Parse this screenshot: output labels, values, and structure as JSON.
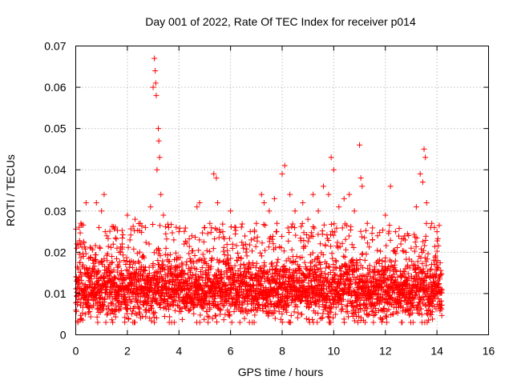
{
  "chart_data": {
    "type": "scatter",
    "title": "Day 001 of 2022, Rate Of TEC Index for receiver p014",
    "xlabel": "GPS time / hours",
    "ylabel": "ROTI / TECUs",
    "xlim": [
      0,
      16
    ],
    "ylim": [
      0,
      0.07
    ],
    "x_ticks": [
      0,
      2,
      4,
      6,
      8,
      10,
      12,
      14,
      16
    ],
    "y_ticks": [
      0,
      0.01,
      0.02,
      0.03,
      0.04,
      0.05,
      0.06,
      0.07
    ],
    "x_tick_labels": [
      "0",
      "2",
      "4",
      "6",
      "8",
      "10",
      "12",
      "14",
      "16"
    ],
    "y_tick_labels": [
      "0",
      "0.01",
      "0.02",
      "0.03",
      "0.04",
      "0.05",
      "0.06",
      "0.07"
    ],
    "grid": true,
    "marker": "+",
    "series": [
      {
        "name": "ROTI",
        "color": "#ff0000",
        "data_range_hours": [
          0,
          14.2
        ],
        "typical_value": 0.011,
        "points": [
          [
            0.05,
            0.022
          ],
          [
            0.1,
            0.016
          ],
          [
            0.2,
            0.027
          ],
          [
            0.3,
            0.019
          ],
          [
            0.4,
            0.032
          ],
          [
            0.5,
            0.014
          ],
          [
            0.6,
            0.021
          ],
          [
            0.7,
            0.018
          ],
          [
            0.8,
            0.032
          ],
          [
            0.9,
            0.026
          ],
          [
            1.0,
            0.03
          ],
          [
            1.1,
            0.034
          ],
          [
            1.2,
            0.024
          ],
          [
            1.4,
            0.019
          ],
          [
            1.6,
            0.021
          ],
          [
            1.8,
            0.022
          ],
          [
            2.0,
            0.029
          ],
          [
            2.1,
            0.023
          ],
          [
            2.3,
            0.028
          ],
          [
            2.5,
            0.027
          ],
          [
            2.7,
            0.026
          ],
          [
            2.9,
            0.031
          ],
          [
            3.0,
            0.06
          ],
          [
            3.05,
            0.067
          ],
          [
            3.08,
            0.064
          ],
          [
            3.1,
            0.061
          ],
          [
            3.12,
            0.058
          ],
          [
            3.15,
            0.04
          ],
          [
            3.2,
            0.05
          ],
          [
            3.22,
            0.047
          ],
          [
            3.25,
            0.043
          ],
          [
            3.3,
            0.034
          ],
          [
            3.4,
            0.029
          ],
          [
            3.6,
            0.026
          ],
          [
            3.8,
            0.023
          ],
          [
            4.0,
            0.025
          ],
          [
            4.2,
            0.022
          ],
          [
            4.5,
            0.024
          ],
          [
            4.7,
            0.031
          ],
          [
            4.8,
            0.032
          ],
          [
            5.0,
            0.026
          ],
          [
            5.2,
            0.027
          ],
          [
            5.35,
            0.039
          ],
          [
            5.45,
            0.038
          ],
          [
            5.5,
            0.032
          ],
          [
            5.7,
            0.025
          ],
          [
            6.0,
            0.03
          ],
          [
            6.2,
            0.026
          ],
          [
            6.5,
            0.021
          ],
          [
            6.8,
            0.023
          ],
          [
            7.0,
            0.027
          ],
          [
            7.2,
            0.034
          ],
          [
            7.3,
            0.032
          ],
          [
            7.5,
            0.03
          ],
          [
            7.7,
            0.033
          ],
          [
            7.8,
            0.027
          ],
          [
            8.0,
            0.039
          ],
          [
            8.1,
            0.041
          ],
          [
            8.3,
            0.034
          ],
          [
            8.5,
            0.03
          ],
          [
            8.8,
            0.032
          ],
          [
            9.0,
            0.028
          ],
          [
            9.2,
            0.034
          ],
          [
            9.4,
            0.03
          ],
          [
            9.6,
            0.036
          ],
          [
            9.8,
            0.034
          ],
          [
            9.9,
            0.043
          ],
          [
            10.0,
            0.04
          ],
          [
            10.2,
            0.031
          ],
          [
            10.4,
            0.033
          ],
          [
            10.6,
            0.034
          ],
          [
            10.8,
            0.03
          ],
          [
            11.0,
            0.046
          ],
          [
            11.05,
            0.038
          ],
          [
            11.1,
            0.036
          ],
          [
            11.3,
            0.027
          ],
          [
            11.5,
            0.023
          ],
          [
            11.7,
            0.024
          ],
          [
            12.0,
            0.029
          ],
          [
            12.2,
            0.036
          ],
          [
            12.4,
            0.025
          ],
          [
            12.6,
            0.022
          ],
          [
            12.8,
            0.02
          ],
          [
            13.0,
            0.021
          ],
          [
            13.2,
            0.031
          ],
          [
            13.35,
            0.039
          ],
          [
            13.45,
            0.037
          ],
          [
            13.5,
            0.045
          ],
          [
            13.55,
            0.043
          ],
          [
            13.6,
            0.032
          ],
          [
            13.8,
            0.027
          ],
          [
            13.9,
            0.026
          ],
          [
            14.0,
            0.025
          ],
          [
            14.1,
            0.014
          ]
        ]
      }
    ]
  }
}
